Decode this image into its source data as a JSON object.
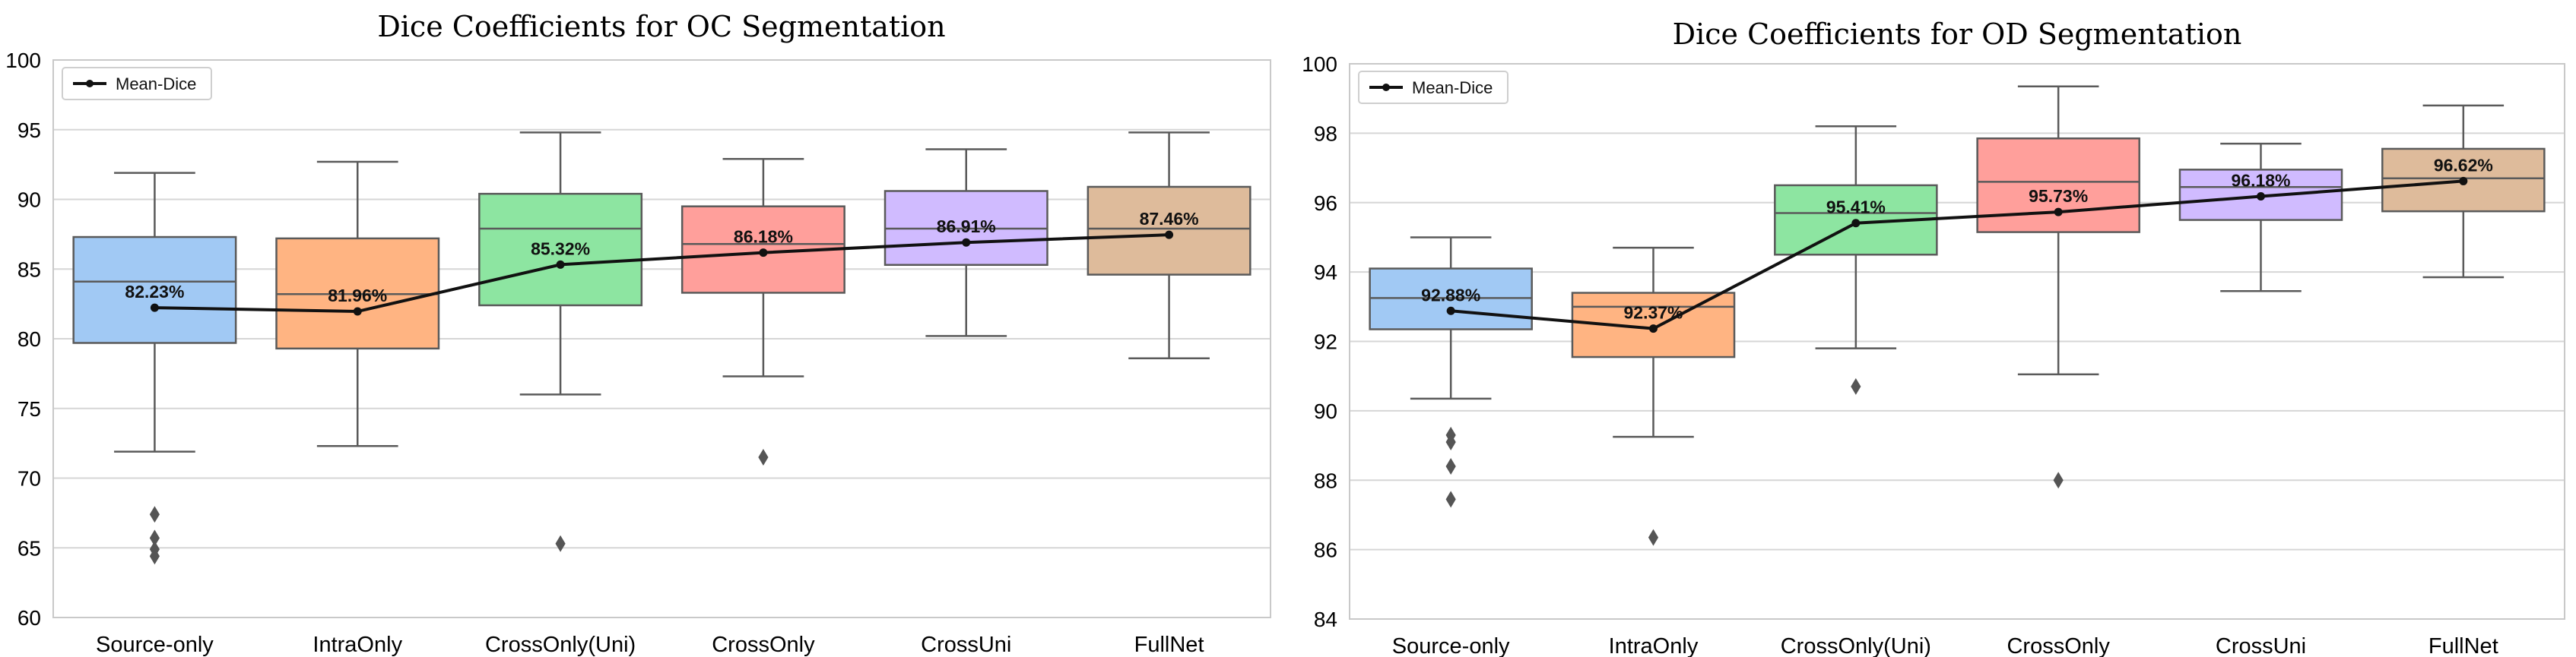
{
  "chart_data": [
    {
      "type": "box",
      "title": "Dice Coefficients for OC Segmentation",
      "xlabel": "",
      "ylabel": "",
      "ylim": [
        60,
        100
      ],
      "yticks": [
        60,
        65,
        70,
        75,
        80,
        85,
        90,
        95,
        100
      ],
      "grid": true,
      "legend": {
        "position": "top-left",
        "entries": [
          "Mean-Dice"
        ]
      },
      "categories": [
        "Source-only",
        "IntraOnly",
        "CrossOnly(Uni)",
        "CrossOnly",
        "CrossUni",
        "FullNet"
      ],
      "colors": [
        "#a1c9f4",
        "#ffb482",
        "#8de5a1",
        "#ff9f9b",
        "#d0bbff",
        "#debb9b"
      ],
      "boxes": [
        {
          "whisker_low": 71.9,
          "q1": 79.7,
          "median": 84.1,
          "q3": 87.3,
          "whisker_high": 91.9,
          "outliers": [
            67.4,
            65.7,
            64.9,
            64.4
          ]
        },
        {
          "whisker_low": 72.3,
          "q1": 79.3,
          "median": 83.2,
          "q3": 87.2,
          "whisker_high": 92.7,
          "outliers": []
        },
        {
          "whisker_low": 76.0,
          "q1": 82.4,
          "median": 87.9,
          "q3": 90.4,
          "whisker_high": 94.8,
          "outliers": [
            65.3
          ]
        },
        {
          "whisker_low": 77.3,
          "q1": 83.3,
          "median": 86.8,
          "q3": 89.5,
          "whisker_high": 92.9,
          "outliers": [
            71.5
          ]
        },
        {
          "whisker_low": 80.2,
          "q1": 85.3,
          "median": 87.9,
          "q3": 90.6,
          "whisker_high": 93.6,
          "outliers": []
        },
        {
          "whisker_low": 78.6,
          "q1": 84.6,
          "median": 87.9,
          "q3": 90.9,
          "whisker_high": 94.8,
          "outliers": []
        }
      ],
      "mean_series": {
        "name": "Mean-Dice",
        "values": [
          82.23,
          81.96,
          85.32,
          86.18,
          86.91,
          87.46
        ],
        "labels": [
          "82.23%",
          "81.96%",
          "85.32%",
          "86.18%",
          "86.91%",
          "87.46%"
        ]
      }
    },
    {
      "type": "box",
      "title": "Dice Coefficients for OD Segmentation",
      "xlabel": "",
      "ylabel": "",
      "ylim": [
        84,
        100
      ],
      "yticks": [
        84,
        86,
        88,
        90,
        92,
        94,
        96,
        98,
        100
      ],
      "grid": true,
      "legend": {
        "position": "top-left",
        "entries": [
          "Mean-Dice"
        ]
      },
      "categories": [
        "Source-only",
        "IntraOnly",
        "CrossOnly(Uni)",
        "CrossOnly",
        "CrossUni",
        "FullNet"
      ],
      "colors": [
        "#a1c9f4",
        "#ffb482",
        "#8de5a1",
        "#ff9f9b",
        "#d0bbff",
        "#debb9b"
      ],
      "boxes": [
        {
          "whisker_low": 90.35,
          "q1": 92.35,
          "median": 93.25,
          "q3": 94.1,
          "whisker_high": 95.0,
          "outliers": [
            89.3,
            89.1,
            88.4,
            87.45
          ]
        },
        {
          "whisker_low": 89.25,
          "q1": 91.55,
          "median": 93.0,
          "q3": 93.4,
          "whisker_high": 94.7,
          "outliers": [
            86.35
          ]
        },
        {
          "whisker_low": 91.8,
          "q1": 94.5,
          "median": 95.7,
          "q3": 96.5,
          "whisker_high": 98.2,
          "outliers": [
            90.7
          ]
        },
        {
          "whisker_low": 91.05,
          "q1": 95.15,
          "median": 96.6,
          "q3": 97.85,
          "whisker_high": 99.35,
          "outliers": [
            88.0
          ]
        },
        {
          "whisker_low": 93.45,
          "q1": 95.5,
          "median": 96.45,
          "q3": 96.95,
          "whisker_high": 97.7,
          "outliers": []
        },
        {
          "whisker_low": 93.85,
          "q1": 95.75,
          "median": 96.7,
          "q3": 97.55,
          "whisker_high": 98.8,
          "outliers": []
        }
      ],
      "mean_series": {
        "name": "Mean-Dice",
        "values": [
          92.88,
          92.37,
          95.41,
          95.73,
          96.18,
          96.62
        ],
        "labels": [
          "92.88%",
          "92.37%",
          "95.41%",
          "95.73%",
          "96.18%",
          "96.62%"
        ]
      }
    }
  ]
}
